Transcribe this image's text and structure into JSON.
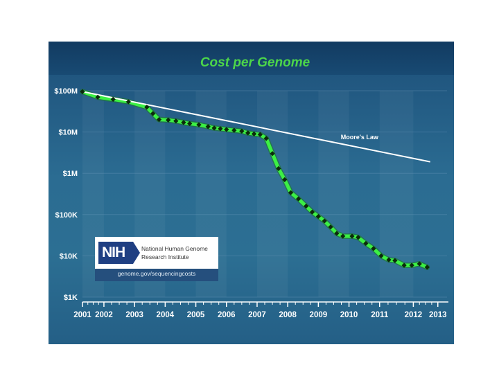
{
  "chart_data": {
    "type": "line",
    "title": "Cost per Genome",
    "y_scale": "log",
    "ylim": [
      1000,
      100000000
    ],
    "y_ticks": [
      {
        "value": 100000000,
        "label": "$100M"
      },
      {
        "value": 10000000,
        "label": "$10M"
      },
      {
        "value": 1000000,
        "label": "$1M"
      },
      {
        "value": 100000,
        "label": "$100K"
      },
      {
        "value": 10000,
        "label": "$10K"
      },
      {
        "value": 1000,
        "label": "$1K"
      }
    ],
    "xlim": [
      2001.5,
      2013.4
    ],
    "x_ticks": [
      {
        "value": 2001.5,
        "label": "2001"
      },
      {
        "value": 2002.2,
        "label": "2002"
      },
      {
        "value": 2003.2,
        "label": "2003"
      },
      {
        "value": 2004.2,
        "label": "2004"
      },
      {
        "value": 2005.2,
        "label": "2005"
      },
      {
        "value": 2006.2,
        "label": "2006"
      },
      {
        "value": 2007.2,
        "label": "2007"
      },
      {
        "value": 2008.2,
        "label": "2008"
      },
      {
        "value": 2009.2,
        "label": "2009"
      },
      {
        "value": 2010.2,
        "label": "2010"
      },
      {
        "value": 2011.2,
        "label": "2011"
      },
      {
        "value": 2012.3,
        "label": "2012"
      },
      {
        "value": 2013.1,
        "label": "2013"
      }
    ],
    "series": [
      {
        "name": "Cost per Genome",
        "color": "#3cf044",
        "marker_color": "#0c2a0c",
        "x": [
          2001.5,
          2002.0,
          2002.5,
          2003.0,
          2003.6,
          2003.8,
          2004.0,
          2004.3,
          2004.55,
          2004.8,
          2005.0,
          2005.3,
          2005.6,
          2005.8,
          2006.0,
          2006.2,
          2006.45,
          2006.7,
          2006.9,
          2007.1,
          2007.3,
          2007.5,
          2007.7,
          2007.9,
          2008.1,
          2008.3,
          2008.55,
          2008.8,
          2009.0,
          2009.2,
          2009.4,
          2009.6,
          2009.8,
          2010.0,
          2010.3,
          2010.5,
          2010.75,
          2011.0,
          2011.25,
          2011.5,
          2011.7,
          2012.0,
          2012.25,
          2012.5,
          2012.75
        ],
        "values": [
          95000000,
          70000000,
          62000000,
          54000000,
          40000000,
          28000000,
          20000000,
          19500000,
          18500000,
          17000000,
          16000000,
          15000000,
          13500000,
          12500000,
          12000000,
          11500000,
          11000000,
          10500000,
          9500000,
          9000000,
          8700000,
          7000000,
          3000000,
          1300000,
          700000,
          340000,
          240000,
          160000,
          115000,
          90000,
          70000,
          50000,
          35000,
          30000,
          30000,
          28000,
          20000,
          15000,
          10000,
          8000,
          7700,
          5900,
          5900,
          6400,
          5300
        ]
      },
      {
        "name": "Moore's Law",
        "color": "#ffffff",
        "x": [
          2001.5,
          2012.85
        ],
        "values": [
          95000000,
          1900000
        ]
      }
    ],
    "annotations": [
      {
        "text": "Moore's Law",
        "x": 2010.0,
        "y": 7500000
      }
    ]
  },
  "nih": {
    "logo_text": "NIH",
    "name_line1": "National Human Genome",
    "name_line2": "Research Institute",
    "url": "genome.gov/sequencingcosts"
  }
}
